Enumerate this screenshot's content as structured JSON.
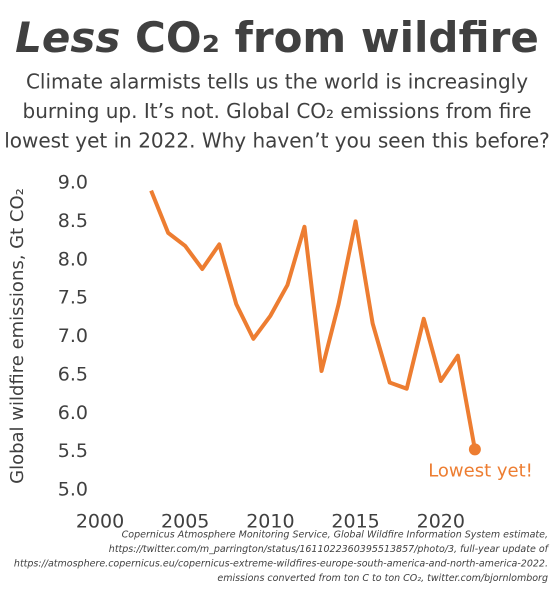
{
  "chart_data": {
    "type": "line",
    "title_emphasis": "Less",
    "title": "CO₂ from wildfire",
    "subtitle": [
      "Climate alarmists tells us the world is increasingly",
      "burning up. It’s not. Global CO₂ emissions from fire",
      "lowest yet in 2022. Why haven’t you seen this before?"
    ],
    "y_label": "Global wildfire emissions, Gt CO₂",
    "annotation": "Lowest yet!",
    "source": [
      "Copernicus Atmosphere Monitoring Service, Global Wildfire Information System estimate,",
      "https://twitter.com/m_parrington/status/1611022360395513857/photo/3, full-year update of",
      "https://atmosphere.copernicus.eu/copernicus-extreme-wildfires-europe-south-america-and-north-america-2022.",
      "emissions converted from ton C to ton CO₂, twitter.com/bjornlomborg"
    ],
    "x": [
      2003,
      2004,
      2005,
      2006,
      2007,
      2008,
      2009,
      2010,
      2011,
      2012,
      2013,
      2014,
      2015,
      2016,
      2017,
      2018,
      2019,
      2020,
      2021,
      2022
    ],
    "series": [
      {
        "color": "#ed7d31",
        "values": [
          8.9,
          8.35,
          8.18,
          7.88,
          8.2,
          7.42,
          6.97,
          7.27,
          7.67,
          8.43,
          6.55,
          7.42,
          8.5,
          7.17,
          6.4,
          6.32,
          7.23,
          6.42,
          6.75,
          5.53
        ]
      }
    ],
    "xlim": [
      2000,
      2025
    ],
    "xticks": [
      2000,
      2005,
      2010,
      2015,
      2020
    ],
    "ylim": [
      5,
      9
    ],
    "yticks": [
      {
        "value": 5,
        "label": "5.0"
      },
      {
        "value": 5.5,
        "label": "5.5"
      },
      {
        "value": 6,
        "label": "6.0"
      },
      {
        "value": 6.5,
        "label": "6.5"
      },
      {
        "value": 7,
        "label": "7.0"
      },
      {
        "value": 7.5,
        "label": "7.5"
      },
      {
        "value": 8,
        "label": "8.0"
      },
      {
        "value": 8.5,
        "label": "8.5"
      },
      {
        "value": 9,
        "label": "9.0"
      }
    ],
    "grid": false
  }
}
